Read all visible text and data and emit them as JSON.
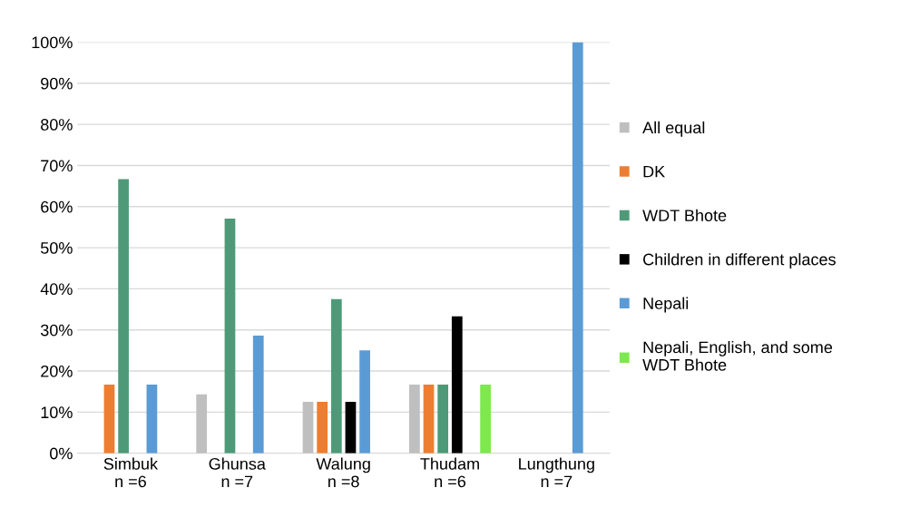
{
  "chart_data": {
    "type": "bar",
    "categories": [
      "Simbuk\nn =6",
      "Ghunsa\nn =7",
      "Walung\nn =8",
      "Thudam\nn =6",
      "Lungthung\nn =7"
    ],
    "series": [
      {
        "name": "All equal",
        "color": "#bfbfbf",
        "values": [
          null,
          14.3,
          12.5,
          16.7,
          null
        ]
      },
      {
        "name": "DK",
        "color": "#ed7d31",
        "values": [
          16.7,
          null,
          12.5,
          16.7,
          null
        ]
      },
      {
        "name": "WDT Bhote",
        "color": "#4e9a78",
        "values": [
          66.7,
          57.1,
          37.5,
          16.7,
          null
        ]
      },
      {
        "name": "Children in different places",
        "color": "#000000",
        "values": [
          null,
          null,
          12.5,
          33.3,
          null
        ]
      },
      {
        "name": "Nepali",
        "color": "#5b9bd5",
        "values": [
          16.7,
          28.6,
          25,
          null,
          100
        ]
      },
      {
        "name": "Nepali, English, and some WDT Bhote",
        "color": "#7ee84f",
        "values": [
          null,
          null,
          null,
          16.7,
          null
        ]
      }
    ],
    "ylim": [
      0,
      100
    ],
    "yticks": [
      {
        "value": 0,
        "label": "0%"
      },
      {
        "value": 10,
        "label": "10%"
      },
      {
        "value": 20,
        "label": "20%"
      },
      {
        "value": 30,
        "label": "30%"
      },
      {
        "value": 40,
        "label": "40%"
      },
      {
        "value": 50,
        "label": "50%"
      },
      {
        "value": 60,
        "label": "60%"
      },
      {
        "value": 70,
        "label": "70%"
      },
      {
        "value": 80,
        "label": "80%"
      },
      {
        "value": 90,
        "label": "90%"
      },
      {
        "value": 100,
        "label": "100%"
      }
    ],
    "grid": "y",
    "legend": "right"
  }
}
